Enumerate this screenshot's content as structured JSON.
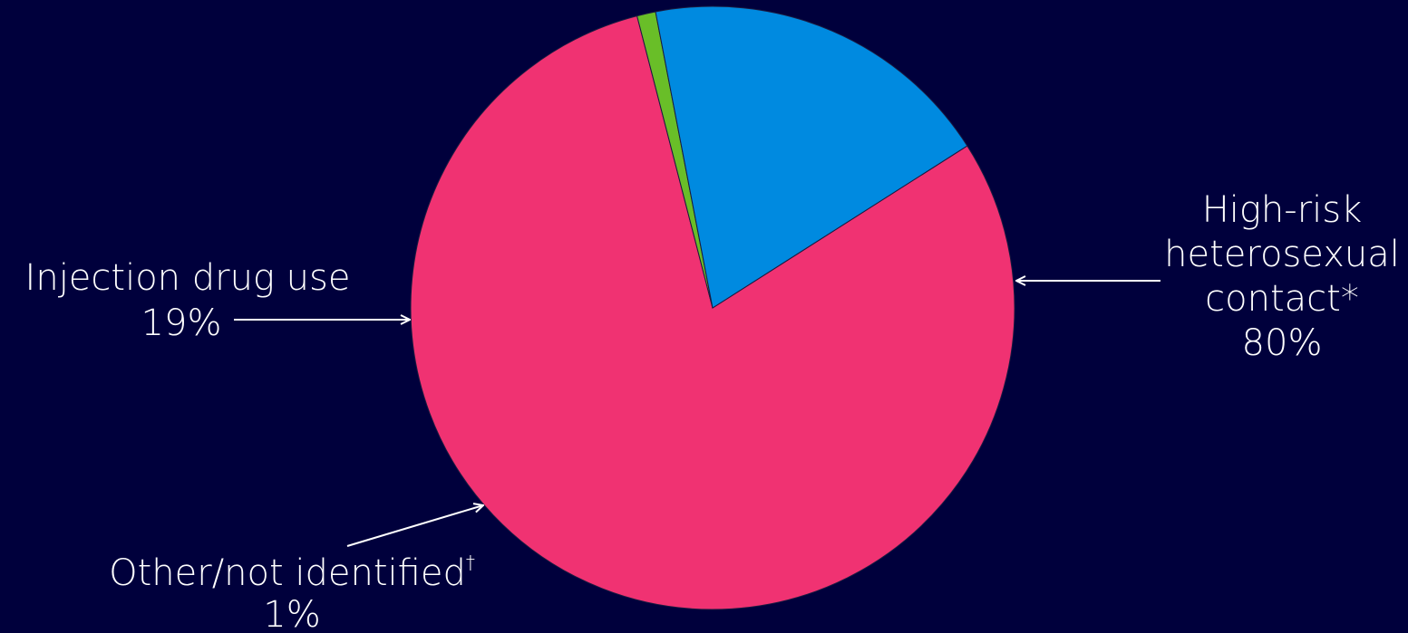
{
  "chart_data": {
    "type": "pie",
    "title": "",
    "slices": [
      {
        "label_lines": [
          "High-risk",
          "heterosexual",
          "contact*"
        ],
        "value": 80,
        "value_label": "80%",
        "color": "#f03272"
      },
      {
        "label_lines": [
          "Other/not identified"
        ],
        "label_sup": "†",
        "value": 1,
        "value_label": "1%",
        "color": "#69be28"
      },
      {
        "label_lines": [
          "Injection drug use"
        ],
        "value": 19,
        "value_label": "19%",
        "color": "#008ae0"
      }
    ],
    "start_angle_deg": -32.5,
    "direction": "clockwise",
    "legend": "none",
    "labels": "outside-with-arrows"
  },
  "colors": {
    "background": "#00003c",
    "text": "#ffffff"
  }
}
